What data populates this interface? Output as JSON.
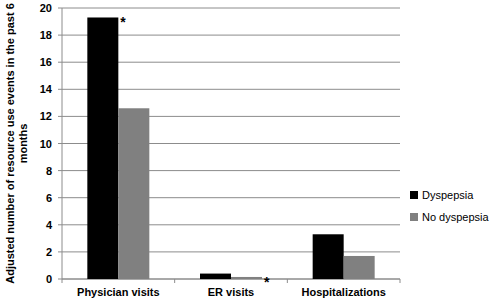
{
  "chart_data": {
    "type": "bar",
    "y_label": "Adjusted number of resource use events in the past 6 months",
    "categories": [
      "Physician visits",
      "ER visits",
      "Hospitalizations"
    ],
    "series": [
      {
        "name": "Dyspepsia",
        "color": "#000000",
        "values": [
          19.3,
          0.4,
          3.3
        ]
      },
      {
        "name": "No dyspepsia",
        "color": "#808080",
        "values": [
          12.6,
          0.15,
          1.7
        ]
      }
    ],
    "annotations": [
      {
        "text": "*",
        "category": "Physician visits",
        "series": "Dyspepsia"
      },
      {
        "text": "*",
        "category": "ER visits",
        "series": "No dyspepsia"
      }
    ],
    "ylim": [
      0,
      20
    ],
    "yticks": [
      0,
      2,
      4,
      6,
      8,
      10,
      12,
      14,
      16,
      18,
      20
    ],
    "grid": true,
    "legend": "right"
  }
}
